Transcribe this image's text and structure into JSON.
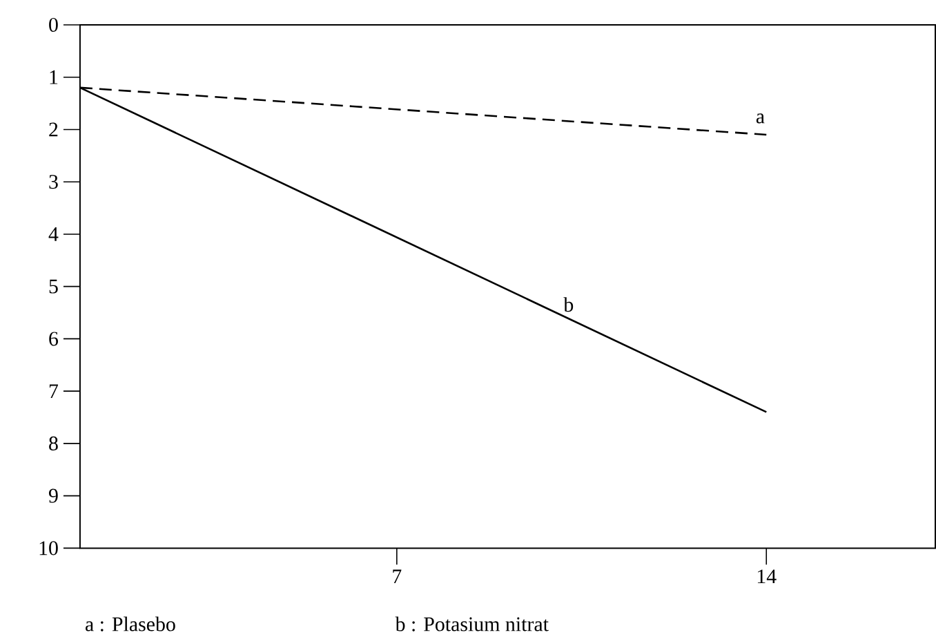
{
  "chart_data": {
    "type": "line",
    "x": [
      1,
      14
    ],
    "xlim": [
      1,
      17.2
    ],
    "xticks": [
      7,
      14
    ],
    "ylim": [
      10,
      0
    ],
    "yticks": [
      0,
      1,
      2,
      3,
      4,
      5,
      6,
      7,
      8,
      9,
      10
    ],
    "series": [
      {
        "name": "a",
        "color": "#000000",
        "line_style": "dashed",
        "values": [
          1.2,
          2.1
        ]
      },
      {
        "name": "b",
        "color": "#000000",
        "line_style": "solid",
        "values": [
          1.2,
          7.4
        ]
      }
    ],
    "annotations": [
      "a : Plasebo",
      "b : Potasium nitrat"
    ],
    "marker": "none",
    "grid": false
  }
}
